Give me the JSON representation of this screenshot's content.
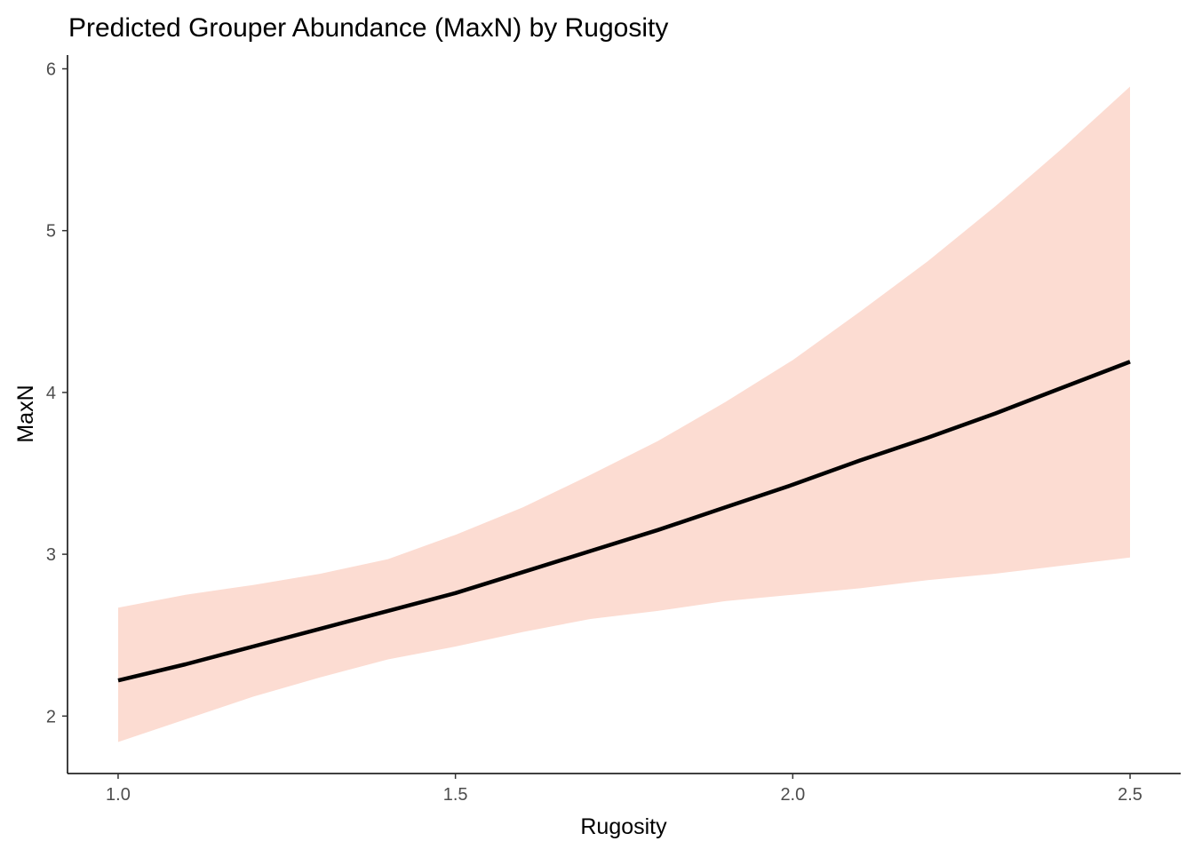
{
  "chart_data": {
    "type": "line",
    "title": "Predicted Grouper Abundance (MaxN) by Rugosity",
    "xlabel": "Rugosity",
    "ylabel": "MaxN",
    "xlim": [
      0.925,
      2.575
    ],
    "ylim": [
      1.645,
      6.085
    ],
    "x_ticks": [
      1.0,
      1.5,
      2.0,
      2.5
    ],
    "x_tick_labels": [
      "1.0",
      "1.5",
      "2.0",
      "2.5"
    ],
    "y_ticks": [
      2,
      3,
      4,
      5,
      6
    ],
    "y_tick_labels": [
      "2",
      "3",
      "4",
      "5",
      "6"
    ],
    "grid": false,
    "legend": "none",
    "colors": {
      "line": "#000000",
      "ribbon": "#fcdcd2",
      "axis": "#000000",
      "tick_text": "#4d4d4d"
    },
    "series": [
      {
        "x": [
          1.0,
          1.1,
          1.2,
          1.3,
          1.4,
          1.5,
          1.6,
          1.7,
          1.8,
          1.9,
          2.0,
          2.1,
          2.2,
          2.3,
          2.4,
          2.5
        ],
        "y": [
          2.22,
          2.32,
          2.43,
          2.54,
          2.65,
          2.76,
          2.89,
          3.02,
          3.15,
          3.29,
          3.43,
          3.58,
          3.72,
          3.87,
          4.03,
          4.19
        ],
        "lower": [
          1.84,
          1.98,
          2.12,
          2.24,
          2.35,
          2.43,
          2.52,
          2.6,
          2.65,
          2.71,
          2.75,
          2.79,
          2.84,
          2.88,
          2.93,
          2.98
        ],
        "upper": [
          2.67,
          2.75,
          2.81,
          2.88,
          2.97,
          3.12,
          3.29,
          3.49,
          3.7,
          3.94,
          4.2,
          4.5,
          4.81,
          5.15,
          5.51,
          5.89
        ]
      }
    ]
  }
}
